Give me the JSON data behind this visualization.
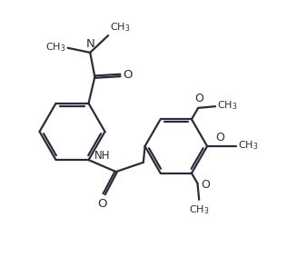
{
  "bg_color": "#ffffff",
  "line_color": "#2b2b3b",
  "line_width": 1.6,
  "font_size": 8.5,
  "figsize": [
    3.27,
    2.83
  ],
  "dpi": 100,
  "xlim": [
    0,
    9.5
  ],
  "ylim": [
    0,
    8.2
  ]
}
